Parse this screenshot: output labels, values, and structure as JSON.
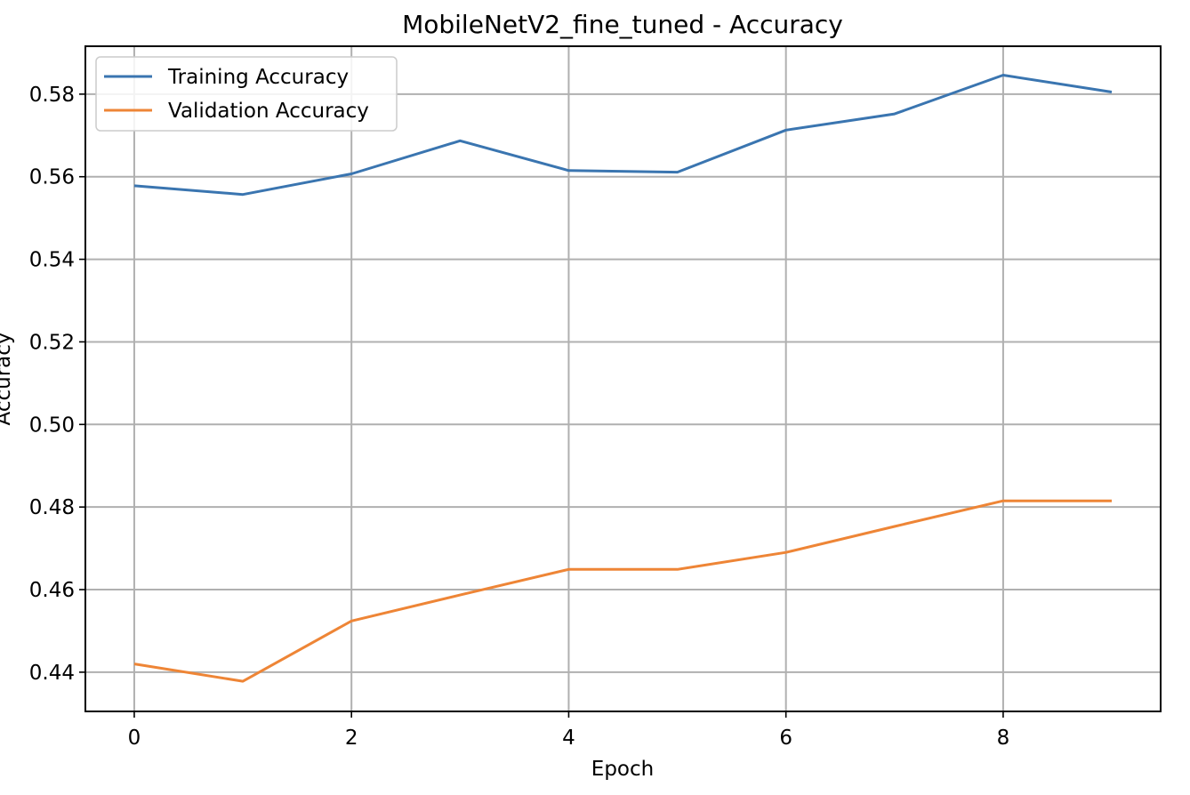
{
  "chart_data": {
    "type": "line",
    "title": "MobileNetV2_fine_tuned - Accuracy",
    "xlabel": "Epoch",
    "ylabel": "Accuracy",
    "x": [
      0,
      1,
      2,
      3,
      4,
      5,
      6,
      7,
      8,
      9
    ],
    "xticks": [
      "0",
      "2",
      "4",
      "6",
      "8"
    ],
    "yticks": [
      "0.44",
      "0.46",
      "0.48",
      "0.50",
      "0.52",
      "0.54",
      "0.56",
      "0.58"
    ],
    "xlim": [
      -0.45,
      9.45
    ],
    "ylim": [
      0.4305,
      0.5916
    ],
    "grid": true,
    "legend_position": "upper-left",
    "series": [
      {
        "name": "Training Accuracy",
        "color": "#3a75b0",
        "values": [
          0.5578,
          0.5557,
          0.5607,
          0.5687,
          0.5615,
          0.5611,
          0.5713,
          0.5752,
          0.5846,
          0.5805
        ]
      },
      {
        "name": "Validation Accuracy",
        "color": "#ee8536",
        "values": [
          0.442,
          0.4378,
          0.4524,
          0.4587,
          0.4649,
          0.4649,
          0.469,
          0.4753,
          0.4815,
          0.4815
        ]
      }
    ]
  }
}
